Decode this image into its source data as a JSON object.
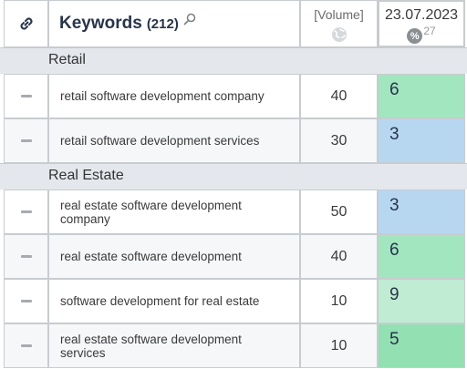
{
  "header": {
    "keywords_title": "Keywords",
    "keywords_count": "(212)",
    "volume_label": "[Volume]",
    "date_label": "23.07.2023",
    "percent_symbol": "%",
    "percent_value": "27"
  },
  "groups": [
    {
      "name": "Retail",
      "rows": [
        {
          "keyword": "retail software development company",
          "volume": "40",
          "rank": "6",
          "rank_color": "#a1e6bf"
        },
        {
          "keyword": "retail software development services",
          "volume": "30",
          "rank": "3",
          "rank_color": "#b7d7f1"
        }
      ]
    },
    {
      "name": "Real Estate",
      "rows": [
        {
          "keyword": "real estate software development company",
          "volume": "50",
          "rank": "3",
          "rank_color": "#b7d7f1"
        },
        {
          "keyword": "real estate software development",
          "volume": "40",
          "rank": "6",
          "rank_color": "#a1e6bf"
        },
        {
          "keyword": "software development for real estate",
          "volume": "10",
          "rank": "9",
          "rank_color": "#c0ecd3"
        },
        {
          "keyword": "real estate software development services",
          "volume": "10",
          "rank": "5",
          "rank_color": "#93e0b2"
        }
      ]
    }
  ]
}
